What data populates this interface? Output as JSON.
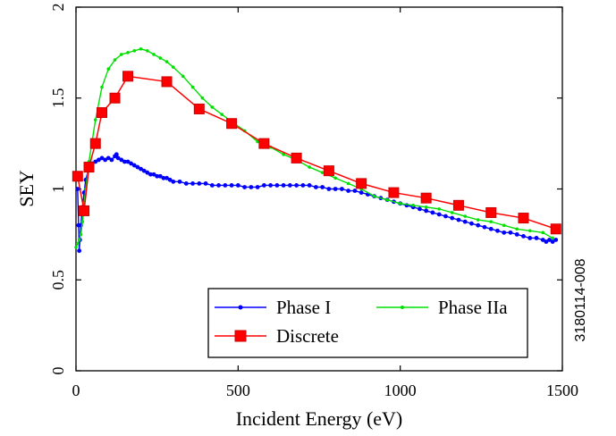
{
  "chart_data": {
    "type": "line",
    "xlabel": "Incident Energy (eV)",
    "ylabel": "SEY",
    "xlim": [
      0,
      1500
    ],
    "ylim": [
      0,
      2
    ],
    "x_ticks": [
      "0",
      "500",
      "1000",
      "1500"
    ],
    "y_ticks": [
      "0",
      "0.5",
      "1",
      "1.5",
      "2"
    ],
    "grid": false,
    "legend_position": "bottom-right",
    "figure_id": "3180114-008",
    "colors": {
      "phase1": "#0000ff",
      "phase2a": "#00e000",
      "discrete": "#ff0000",
      "discrete_edge": "#cc0000"
    },
    "series": [
      {
        "name": "Phase I",
        "color": "#0000ff",
        "x": [
          5,
          8,
          10,
          12,
          15,
          20,
          25,
          30,
          40,
          50,
          60,
          70,
          80,
          90,
          100,
          110,
          120,
          125,
          130,
          140,
          150,
          160,
          170,
          180,
          190,
          200,
          210,
          220,
          230,
          240,
          250,
          260,
          270,
          280,
          290,
          300,
          320,
          340,
          360,
          380,
          400,
          420,
          440,
          460,
          480,
          500,
          520,
          540,
          560,
          580,
          600,
          620,
          640,
          660,
          680,
          700,
          720,
          740,
          760,
          780,
          800,
          820,
          840,
          860,
          880,
          900,
          920,
          940,
          960,
          980,
          1000,
          1020,
          1040,
          1060,
          1080,
          1100,
          1120,
          1140,
          1160,
          1180,
          1200,
          1220,
          1240,
          1260,
          1280,
          1300,
          1320,
          1340,
          1360,
          1380,
          1400,
          1420,
          1440,
          1450,
          1460,
          1470,
          1480
        ],
        "y": [
          1.0,
          0.8,
          0.66,
          0.72,
          0.8,
          0.9,
          0.98,
          1.05,
          1.12,
          1.14,
          1.15,
          1.16,
          1.17,
          1.16,
          1.17,
          1.16,
          1.18,
          1.19,
          1.17,
          1.16,
          1.15,
          1.15,
          1.14,
          1.13,
          1.12,
          1.11,
          1.1,
          1.09,
          1.08,
          1.08,
          1.07,
          1.07,
          1.06,
          1.06,
          1.05,
          1.04,
          1.04,
          1.03,
          1.03,
          1.03,
          1.03,
          1.02,
          1.02,
          1.02,
          1.02,
          1.02,
          1.01,
          1.01,
          1.01,
          1.02,
          1.02,
          1.02,
          1.02,
          1.02,
          1.02,
          1.02,
          1.02,
          1.01,
          1.01,
          1.0,
          1.0,
          1.0,
          0.99,
          0.99,
          0.98,
          0.97,
          0.96,
          0.95,
          0.94,
          0.93,
          0.92,
          0.91,
          0.9,
          0.89,
          0.88,
          0.87,
          0.86,
          0.85,
          0.84,
          0.83,
          0.82,
          0.81,
          0.8,
          0.79,
          0.78,
          0.77,
          0.76,
          0.76,
          0.75,
          0.74,
          0.73,
          0.73,
          0.72,
          0.71,
          0.72,
          0.71,
          0.72
        ]
      },
      {
        "name": "Phase IIa",
        "color": "#00e000",
        "x": [
          0,
          5,
          10,
          15,
          20,
          30,
          40,
          60,
          80,
          100,
          120,
          140,
          160,
          180,
          200,
          220,
          240,
          260,
          280,
          300,
          330,
          360,
          390,
          420,
          450,
          480,
          520,
          560,
          600,
          640,
          680,
          720,
          760,
          800,
          840,
          880,
          920,
          960,
          1000,
          1040,
          1080,
          1120,
          1160,
          1200,
          1240,
          1280,
          1320,
          1360,
          1400,
          1440,
          1470
        ],
        "y": [
          0.68,
          0.7,
          0.72,
          0.75,
          0.82,
          1.0,
          1.15,
          1.38,
          1.56,
          1.66,
          1.71,
          1.74,
          1.75,
          1.76,
          1.77,
          1.76,
          1.74,
          1.72,
          1.7,
          1.67,
          1.62,
          1.56,
          1.5,
          1.45,
          1.41,
          1.37,
          1.32,
          1.26,
          1.23,
          1.19,
          1.16,
          1.12,
          1.09,
          1.06,
          1.03,
          1.0,
          0.96,
          0.94,
          0.92,
          0.91,
          0.9,
          0.89,
          0.87,
          0.85,
          0.83,
          0.82,
          0.8,
          0.78,
          0.77,
          0.76,
          0.73
        ]
      },
      {
        "name": "Discrete",
        "color": "#ff0000",
        "x": [
          5,
          25,
          40,
          60,
          80,
          120,
          160,
          280,
          380,
          480,
          580,
          680,
          780,
          880,
          980,
          1080,
          1180,
          1280,
          1380,
          1480
        ],
        "y": [
          1.07,
          0.88,
          1.12,
          1.25,
          1.42,
          1.5,
          1.62,
          1.59,
          1.44,
          1.36,
          1.25,
          1.17,
          1.1,
          1.03,
          0.98,
          0.95,
          0.91,
          0.87,
          0.84,
          0.78
        ]
      }
    ]
  }
}
